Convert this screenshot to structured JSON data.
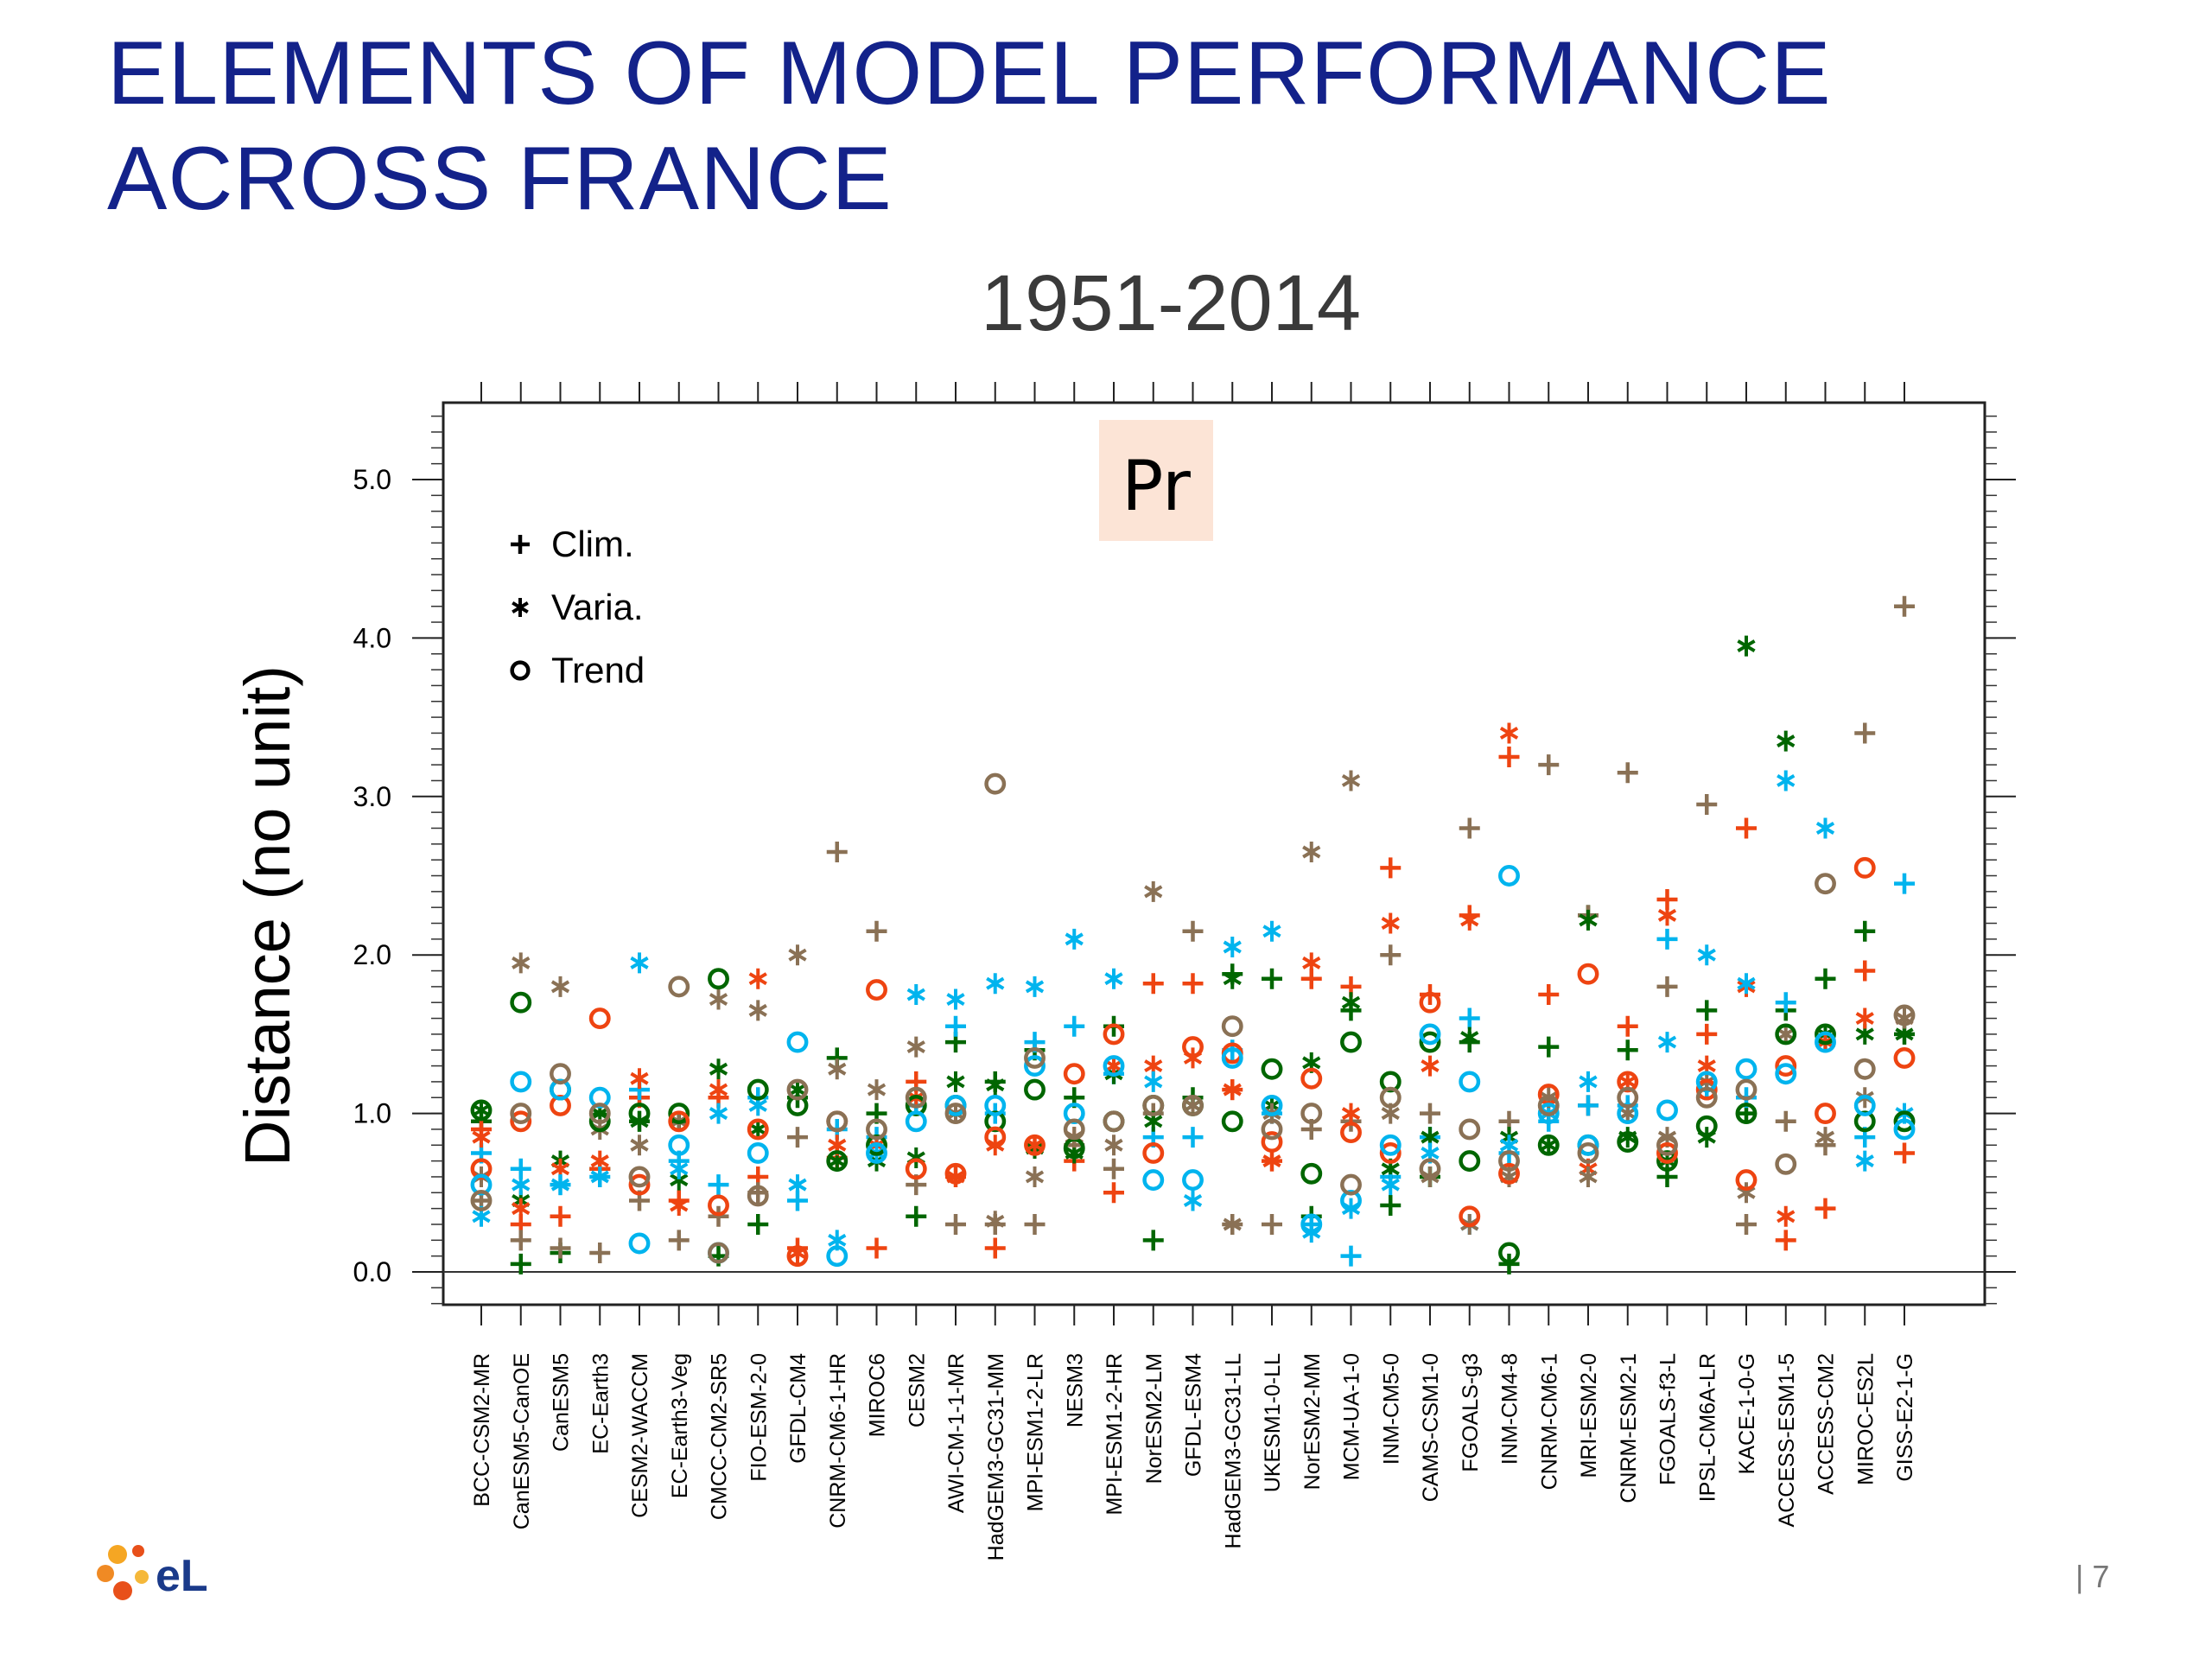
{
  "slide": {
    "title_line1": "ELEMENTS OF MODEL PERFORMANCE",
    "title_line2": "ACROSS FRANCE",
    "page_number": "| 7",
    "logo_text": "eL"
  },
  "colors": {
    "title": "#13228a",
    "series": [
      "#006600",
      "#ee4411",
      "#00b4ee",
      "#8a7155"
    ],
    "pr_box": "#fce4d6"
  },
  "chart_data": {
    "type": "scatter",
    "title": "1951-2014",
    "panel_label": "Pr",
    "ylabel": "Distance (no unit)",
    "xlabel": "",
    "ylim": [
      0,
      5.5
    ],
    "yticks": [
      0,
      1,
      2,
      3,
      4,
      5
    ],
    "ytick_labels": [
      "0.0",
      "1.0",
      "2.0",
      "3.0",
      "4.0",
      "5.0"
    ],
    "legend": [
      {
        "marker": "plus",
        "label": "Clim."
      },
      {
        "marker": "star",
        "label": "Varia."
      },
      {
        "marker": "circle",
        "label": "Trend"
      }
    ],
    "legend_position": "top-left",
    "grid": false,
    "categories": [
      "BCC-CSM2-MR",
      "CanESM5-CanOE",
      "CanESM5",
      "EC-Earth3",
      "CESM2-WACCM",
      "EC-Earth3-Veg",
      "CMCC-CM2-SR5",
      "FIO-ESM-2-0",
      "GFDL-CM4",
      "CNRM-CM6-1-HR",
      "MIROC6",
      "CESM2",
      "AWI-CM-1-1-MR",
      "HadGEM3-GC31-MM",
      "MPI-ESM1-2-LR",
      "NESM3",
      "MPI-ESM1-2-HR",
      "NorESM2-LM",
      "GFDL-ESM4",
      "HadGEM3-GC31-LL",
      "UKESM1-0-LL",
      "NorESM2-MM",
      "MCM-UA-1-0",
      "INM-CM5-0",
      "CAMS-CSM1-0",
      "FGOALS-g3",
      "INM-CM4-8",
      "CNRM-CM6-1",
      "MRI-ESM2-0",
      "CNRM-ESM2-1",
      "FGOALS-f3-L",
      "IPSL-CM6A-LR",
      "KACE-1-0-G",
      "ACCESS-ESM1-5",
      "ACCESS-CM2",
      "MIROC-ES2L",
      "GISS-E2-1-G"
    ],
    "series": [
      {
        "metric": "Clim.",
        "marker": "plus",
        "color_group": "green",
        "values": [
          0.95,
          0.05,
          0.12,
          0.65,
          0.95,
          0.95,
          0.1,
          0.3,
          1.1,
          1.35,
          1.0,
          0.35,
          1.45,
          1.2,
          1.4,
          1.1,
          1.55,
          0.2,
          1.1,
          1.88,
          1.85,
          0.35,
          1.65,
          0.42,
          0.6,
          1.45,
          0.05,
          1.42,
          2.25,
          1.4,
          0.6,
          1.65,
          1.0,
          1.65,
          1.85,
          2.15,
          1.5
        ]
      },
      {
        "metric": "Clim.",
        "marker": "plus",
        "color_group": "red",
        "values": [
          0.9,
          0.3,
          0.35,
          0.65,
          1.1,
          0.45,
          1.1,
          0.6,
          0.15,
          0.72,
          0.15,
          1.2,
          0.6,
          0.15,
          0.8,
          0.7,
          0.5,
          1.82,
          1.82,
          1.15,
          0.7,
          1.85,
          1.8,
          2.55,
          1.75,
          2.25,
          3.25,
          1.75,
          1.05,
          1.55,
          2.35,
          1.5,
          2.8,
          0.2,
          0.4,
          1.9,
          0.75
        ]
      },
      {
        "metric": "Clim.",
        "marker": "plus",
        "color_group": "cyan",
        "values": [
          0.75,
          0.65,
          0.55,
          0.6,
          1.15,
          0.7,
          0.55,
          1.1,
          0.45,
          0.9,
          0.85,
          1.05,
          1.55,
          1.0,
          1.45,
          1.55,
          1.25,
          0.85,
          0.85,
          1.4,
          1.0,
          0.3,
          0.1,
          0.6,
          0.85,
          1.6,
          0.75,
          0.95,
          1.05,
          1.05,
          2.1,
          1.15,
          1.1,
          1.7,
          1.45,
          0.85,
          2.45
        ]
      },
      {
        "metric": "Clim.",
        "marker": "plus",
        "color_group": "brown",
        "values": [
          0.45,
          0.2,
          0.15,
          0.12,
          0.45,
          0.2,
          0.35,
          0.5,
          0.85,
          2.65,
          2.15,
          0.55,
          0.3,
          0.3,
          0.3,
          0.8,
          0.65,
          1.0,
          2.15,
          0.3,
          0.3,
          0.9,
          0.95,
          2.0,
          1.0,
          2.8,
          0.95,
          3.2,
          2.25,
          3.15,
          1.8,
          2.95,
          0.3,
          0.95,
          0.8,
          3.4,
          4.2
        ]
      },
      {
        "metric": "Varia.",
        "marker": "star",
        "color_group": "green",
        "values": [
          1.02,
          0.45,
          0.7,
          1.0,
          0.95,
          0.58,
          1.28,
          0.9,
          1.15,
          0.7,
          0.7,
          0.72,
          1.2,
          1.18,
          0.78,
          0.75,
          1.25,
          0.95,
          1.05,
          1.85,
          1.05,
          1.32,
          1.7,
          0.65,
          0.85,
          1.48,
          0.85,
          0.8,
          2.22,
          0.85,
          0.7,
          0.85,
          3.95,
          3.35,
          1.5,
          1.5,
          1.5
        ]
      },
      {
        "metric": "Varia.",
        "marker": "star",
        "color_group": "red",
        "values": [
          0.85,
          0.4,
          0.65,
          0.7,
          1.22,
          0.42,
          1.15,
          1.85,
          0.12,
          0.8,
          0.8,
          1.1,
          0.6,
          0.8,
          0.8,
          0.85,
          1.3,
          1.3,
          1.35,
          1.15,
          0.7,
          1.95,
          1.0,
          2.2,
          1.3,
          2.22,
          3.4,
          1.0,
          0.65,
          1.2,
          2.25,
          1.3,
          1.8,
          0.35,
          1.45,
          1.6,
          1.6
        ]
      },
      {
        "metric": "Varia.",
        "marker": "star",
        "color_group": "cyan",
        "values": [
          0.35,
          0.55,
          0.55,
          0.6,
          1.95,
          0.65,
          1.0,
          1.05,
          0.55,
          0.2,
          0.75,
          1.75,
          1.72,
          1.82,
          1.8,
          2.1,
          1.85,
          1.2,
          0.45,
          2.05,
          2.15,
          0.25,
          0.4,
          0.55,
          0.75,
          0.3,
          0.8,
          1.0,
          1.2,
          1.0,
          1.45,
          2.0,
          1.82,
          3.1,
          2.8,
          0.7,
          1.0
        ]
      },
      {
        "metric": "Varia.",
        "marker": "star",
        "color_group": "brown",
        "values": [
          0.6,
          1.95,
          1.8,
          0.9,
          0.8,
          0.95,
          1.72,
          1.65,
          2.0,
          1.28,
          1.15,
          1.42,
          1.0,
          0.32,
          0.6,
          0.85,
          0.8,
          2.4,
          1.05,
          0.3,
          1.0,
          2.65,
          3.1,
          1.0,
          0.6,
          0.3,
          0.6,
          1.1,
          0.6,
          1.0,
          0.85,
          1.2,
          0.5,
          1.5,
          0.85,
          1.1,
          1.6
        ]
      },
      {
        "metric": "Trend",
        "marker": "circle",
        "color_group": "green",
        "values": [
          1.02,
          1.7,
          1.15,
          0.95,
          1.0,
          1.0,
          1.85,
          1.15,
          1.05,
          0.7,
          0.8,
          1.05,
          1.05,
          0.95,
          1.15,
          0.78,
          0.95,
          1.05,
          1.05,
          0.95,
          1.28,
          0.62,
          1.45,
          1.2,
          1.45,
          0.7,
          0.12,
          0.8,
          0.8,
          0.82,
          0.7,
          0.92,
          1.0,
          1.5,
          1.5,
          0.95,
          0.95
        ]
      },
      {
        "metric": "Trend",
        "marker": "circle",
        "color_group": "red",
        "values": [
          0.65,
          0.95,
          1.05,
          1.6,
          0.55,
          0.95,
          0.42,
          0.9,
          0.1,
          0.95,
          1.78,
          0.65,
          0.62,
          0.85,
          0.8,
          1.25,
          1.5,
          0.75,
          1.42,
          1.38,
          0.82,
          1.22,
          0.88,
          0.75,
          1.7,
          0.35,
          0.62,
          1.12,
          1.88,
          1.2,
          0.75,
          1.15,
          0.58,
          1.3,
          1.0,
          2.55,
          1.35
        ]
      },
      {
        "metric": "Trend",
        "marker": "circle",
        "color_group": "cyan",
        "values": [
          0.55,
          1.2,
          1.15,
          1.1,
          0.18,
          0.8,
          0.12,
          0.75,
          1.45,
          0.1,
          0.75,
          0.95,
          1.05,
          1.05,
          1.3,
          1.0,
          1.3,
          0.58,
          0.58,
          1.35,
          1.05,
          0.3,
          0.45,
          0.8,
          1.5,
          1.2,
          2.5,
          1.0,
          0.8,
          1.0,
          1.02,
          1.2,
          1.28,
          1.25,
          1.45,
          1.05,
          0.9
        ]
      },
      {
        "metric": "Trend",
        "marker": "circle",
        "color_group": "brown",
        "values": [
          0.45,
          1.0,
          1.25,
          1.0,
          0.6,
          1.8,
          0.12,
          0.48,
          1.15,
          0.95,
          0.9,
          1.1,
          1.0,
          3.08,
          1.35,
          0.9,
          0.95,
          1.05,
          1.05,
          1.55,
          0.9,
          1.0,
          0.55,
          1.1,
          0.65,
          0.9,
          0.7,
          1.05,
          0.75,
          1.1,
          0.8,
          1.1,
          1.15,
          0.68,
          2.45,
          1.28,
          1.62
        ]
      }
    ]
  }
}
